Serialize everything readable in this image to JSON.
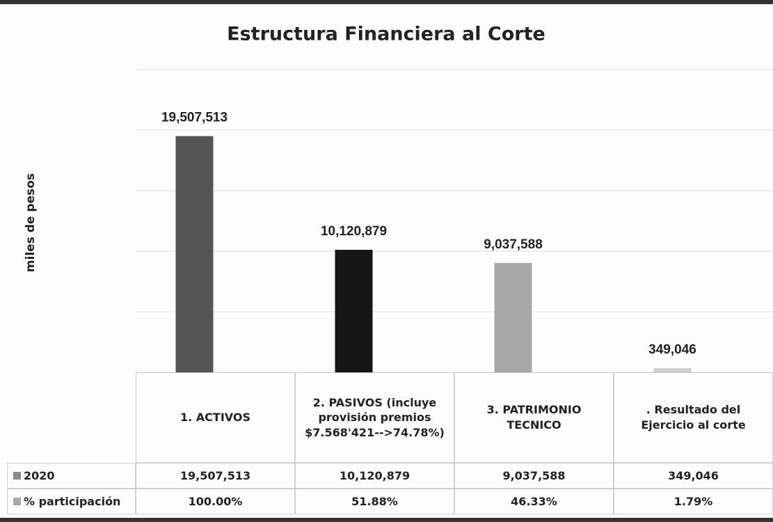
{
  "chart_data": {
    "type": "bar",
    "title": "Estructura Financiera al Corte",
    "ylabel": "miles de pesos",
    "categories": [
      "1. ACTIVOS",
      "2. PASIVOS (incluye provisión premios $7.568'421-->74.78%)",
      "3. PATRIMONIO TECNICO",
      ". Resultado del Ejercicio al corte"
    ],
    "series": [
      {
        "name": "2020",
        "color": "#8c8c8c",
        "colors": [
          "#555555",
          "#161616",
          "#a9a9a9",
          "#cfcfcf"
        ],
        "values": [
          19507513,
          10120879,
          9037588,
          349046
        ],
        "value_labels": [
          "19,507,513",
          "10,120,879",
          "9,037,588",
          "349,046"
        ]
      }
    ],
    "participation": {
      "name": "% participación",
      "values": [
        "100.00%",
        "51.88%",
        "46.33%",
        "1.79%"
      ]
    },
    "ylim": [
      0,
      25000000
    ],
    "yticks": [
      0,
      5000000,
      10000000,
      15000000,
      20000000,
      25000000
    ],
    "grid": true
  }
}
